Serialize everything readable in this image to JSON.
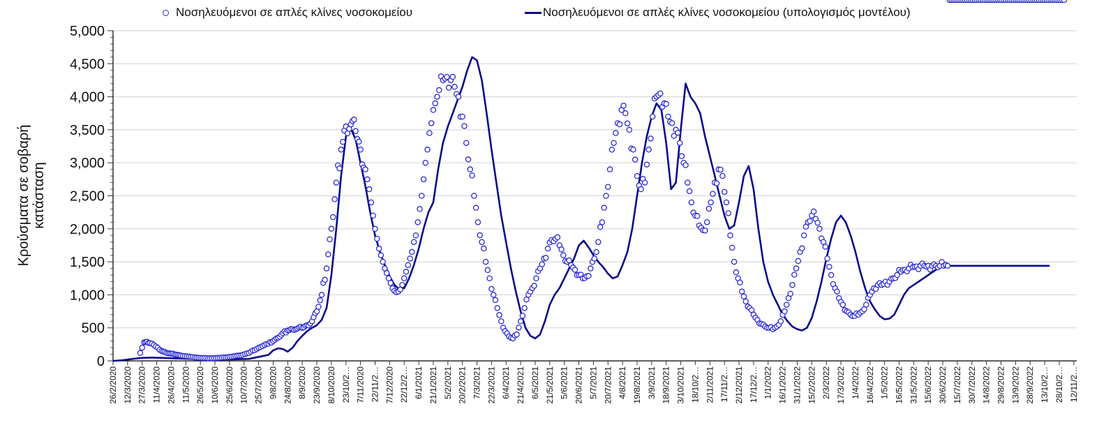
{
  "chart_data": {
    "type": "line",
    "title": "",
    "xlabel": "",
    "ylabel": "Κρούσματα σε σοβαρή κατάσταση",
    "ylabel_lines": [
      "Κρούσματα σε σοβαρή",
      "κατάσταση"
    ],
    "ylim": [
      0,
      5000
    ],
    "yticks": [
      0,
      500,
      1000,
      1500,
      2000,
      2500,
      3000,
      3500,
      4000,
      4500,
      5000
    ],
    "ytick_labels": [
      "0",
      "500",
      "1,000",
      "1,500",
      "2,000",
      "2,500",
      "3,000",
      "3,500",
      "4,000",
      "4,500",
      "5,000"
    ],
    "grid": true,
    "legend_position": "top",
    "x_start": "26/2/2020",
    "x_end": "15/11/2022",
    "x_range_days": [
      0,
      993
    ],
    "xtick_labels": [
      "26/2/2020",
      "12/3/2020",
      "27/3/2020",
      "11/4/2020",
      "26/4/2020",
      "11/5/2020",
      "26/5/2020",
      "10/6/2020",
      "25/6/2020",
      "10/7/2020",
      "25/7/2020",
      "9/8/2020",
      "24/8/2020",
      "8/9/2020",
      "23/9/2020",
      "8/10/2020",
      "23/10/2…",
      "7/11/2020",
      "22/11/2…",
      "7/12/2020",
      "22/12/2…",
      "6/1/2021",
      "21/1/2021",
      "5/2/2021",
      "20/2/2021",
      "7/3/2021",
      "22/3/2021",
      "6/4/2021",
      "21/4/2021",
      "6/5/2021",
      "21/5/2021",
      "5/6/2021",
      "20/6/2021",
      "5/7/2021",
      "20/7/2021",
      "4/8/2021",
      "19/8/2021",
      "3/9/2021",
      "18/9/2021",
      "3/10/2021",
      "18/10/2…",
      "2/11/2021",
      "17/11/2…",
      "2/12/2021",
      "17/12/2…",
      "1/1/2022",
      "16/1/2022",
      "31/1/2022",
      "15/2/2022",
      "2/3/2022",
      "17/3/2022",
      "1/4/2022",
      "16/4/2022",
      "1/5/2022",
      "16/5/2022",
      "31/5/2022",
      "15/6/2022",
      "30/6/2022",
      "15/7/2022",
      "30/7/2022",
      "14/8/2022",
      "29/8/2022",
      "13/9/2022",
      "28/9/2022",
      "13/10/2…",
      "28/10/2…",
      "12/11/2…"
    ],
    "xtick_step_days": 15,
    "series": [
      {
        "name": "Νοσηλευόμενοι σε απλές κλίνες νοσοκομείου",
        "style": "markers",
        "marker": "open-circle",
        "color": "#2b2bd6",
        "x_days": [
          28,
          30,
          32,
          35,
          38,
          42,
          46,
          50,
          55,
          60,
          65,
          70,
          80,
          90,
          100,
          110,
          120,
          130,
          140,
          150,
          160,
          165,
          170,
          175,
          180,
          185,
          190,
          195,
          200,
          205,
          210,
          215,
          220,
          225,
          230,
          235,
          240,
          245,
          250,
          255,
          260,
          262,
          264,
          266,
          268,
          270,
          272,
          274,
          276,
          278,
          280,
          282,
          284,
          286,
          288,
          290,
          292,
          294,
          296,
          298,
          300,
          302,
          304,
          306,
          308,
          310,
          312,
          314,
          316,
          318,
          320,
          322,
          324,
          326,
          328,
          330,
          332,
          334,
          336,
          340,
          344,
          348,
          352,
          356,
          360,
          364,
          368,
          372,
          376,
          380,
          384,
          388,
          392,
          396,
          400,
          404,
          408,
          412,
          416,
          420,
          424,
          428,
          432,
          436,
          440,
          444,
          448,
          452,
          456,
          460,
          464,
          468,
          472,
          476,
          480,
          484,
          488,
          492,
          496,
          500,
          504,
          508,
          512,
          516,
          520,
          524,
          528,
          532,
          536,
          540,
          544,
          548,
          552,
          556,
          560,
          564,
          568,
          572,
          576,
          580,
          584,
          588,
          592,
          596,
          600,
          604,
          608,
          612,
          616,
          620,
          624,
          628,
          632,
          636,
          640,
          644,
          648,
          652,
          656,
          660,
          664,
          668,
          672,
          676,
          680,
          684,
          688,
          692,
          696,
          700,
          704,
          708,
          712,
          716,
          720,
          724,
          728,
          732,
          736,
          740,
          744,
          748,
          752,
          756,
          760,
          764,
          768,
          772,
          776,
          780,
          784,
          788,
          792,
          796,
          800,
          804,
          808,
          812,
          816,
          820,
          824,
          828,
          832,
          836,
          840,
          844,
          848,
          852,
          856,
          860,
          864,
          868,
          872,
          876,
          880,
          884,
          888,
          892,
          896,
          900,
          904,
          908,
          912,
          916,
          920,
          924,
          928,
          932,
          936,
          940,
          944,
          948,
          952,
          956,
          960,
          964,
          968,
          972,
          976,
          980
        ],
        "values": [
          120,
          200,
          280,
          290,
          270,
          240,
          200,
          150,
          120,
          110,
          95,
          80,
          60,
          45,
          40,
          45,
          60,
          80,
          120,
          200,
          260,
          300,
          350,
          420,
          460,
          480,
          490,
          500,
          540,
          600,
          750,
          1000,
          1400,
          2000,
          2700,
          3200,
          3550,
          3580,
          3480,
          3200,
          2900,
          2750,
          2600,
          2400,
          2200,
          2000,
          1850,
          1700,
          1600,
          1500,
          1400,
          1330,
          1250,
          1180,
          1100,
          1060,
          1040,
          1050,
          1080,
          1150,
          1250,
          1350,
          1450,
          1550,
          1650,
          1800,
          1900,
          2100,
          2300,
          2500,
          2750,
          3000,
          3200,
          3450,
          3600,
          3800,
          3900,
          4000,
          4100,
          4250,
          4300,
          4250,
          4150,
          4000,
          3700,
          3300,
          2900,
          2500,
          2100,
          1800,
          1500,
          1250,
          1000,
          800,
          600,
          450,
          370,
          340,
          400,
          600,
          800,
          1000,
          1100,
          1250,
          1400,
          1550,
          1700,
          1830,
          1850,
          1750,
          1600,
          1500,
          1450,
          1380,
          1300,
          1250,
          1280,
          1400,
          1550,
          1800,
          2100,
          2500,
          2900,
          3300,
          3600,
          3800,
          3750,
          3500,
          3200,
          2800,
          2600,
          2700,
          3200,
          3700,
          4000,
          4050,
          3900,
          3700,
          3600,
          3500,
          3300,
          3000,
          2700,
          2400,
          2200,
          2050,
          1980,
          2100,
          2400,
          2700,
          2900,
          2800,
          2400,
          1900,
          1500,
          1250,
          1050,
          900,
          800,
          700,
          620,
          560,
          520,
          500,
          480,
          520,
          600,
          750,
          950,
          1150,
          1400,
          1650,
          1900,
          2100,
          2200,
          2150,
          2000,
          1800,
          1550,
          1300,
          1100,
          950,
          850,
          750,
          700,
          680,
          700,
          750,
          850,
          1000,
          1100,
          1150,
          1150,
          1200,
          1200,
          1250,
          1300,
          1350,
          1380,
          1400,
          1420,
          1430,
          1440,
          1440,
          1440,
          1440,
          1440,
          1440,
          1440,
          1440
        ]
      },
      {
        "name": "Νοσηλευόμενοι σε απλές κλίνες νοσοκομείου (υπολογισμός μοντέλου)",
        "style": "line",
        "color": "#0a0a8c",
        "x_days": [
          0,
          10,
          20,
          30,
          40,
          50,
          60,
          70,
          80,
          90,
          100,
          110,
          120,
          130,
          140,
          150,
          160,
          165,
          170,
          175,
          180,
          185,
          190,
          195,
          200,
          205,
          210,
          215,
          220,
          225,
          230,
          235,
          240,
          245,
          250,
          255,
          260,
          265,
          270,
          275,
          280,
          285,
          290,
          295,
          300,
          305,
          310,
          315,
          320,
          325,
          330,
          335,
          340,
          345,
          350,
          355,
          360,
          365,
          370,
          375,
          380,
          385,
          390,
          395,
          400,
          405,
          410,
          415,
          420,
          425,
          430,
          435,
          440,
          445,
          450,
          455,
          460,
          465,
          470,
          475,
          480,
          485,
          490,
          495,
          500,
          505,
          510,
          515,
          520,
          525,
          530,
          535,
          540,
          545,
          550,
          555,
          560,
          565,
          570,
          575,
          580,
          585,
          590,
          595,
          600,
          605,
          610,
          615,
          620,
          625,
          630,
          635,
          640,
          645,
          650,
          655,
          660,
          665,
          670,
          675,
          680,
          685,
          690,
          695,
          700,
          705,
          710,
          715,
          720,
          725,
          730,
          735,
          740,
          745,
          750,
          755,
          760,
          765,
          770,
          775,
          780,
          785,
          790,
          795,
          800,
          805,
          810,
          815,
          820,
          825,
          830,
          835,
          840,
          845,
          850,
          855,
          860,
          865,
          870,
          875,
          880,
          885,
          890,
          895,
          900,
          905,
          910,
          915,
          920,
          925,
          930,
          935,
          940,
          945,
          950,
          955,
          960,
          965,
          970,
          975,
          980,
          985,
          990,
          993
        ],
        "values": [
          0,
          10,
          30,
          45,
          50,
          45,
          40,
          35,
          30,
          28,
          25,
          22,
          22,
          25,
          30,
          60,
          90,
          160,
          190,
          180,
          140,
          200,
          300,
          380,
          450,
          500,
          540,
          620,
          800,
          1300,
          2000,
          2800,
          3400,
          3520,
          3350,
          3000,
          2650,
          2250,
          1900,
          1650,
          1450,
          1280,
          1150,
          1080,
          1100,
          1250,
          1450,
          1700,
          2000,
          2250,
          2400,
          2900,
          3300,
          3550,
          3750,
          3950,
          4150,
          4400,
          4600,
          4550,
          4250,
          3750,
          3200,
          2700,
          2200,
          1800,
          1400,
          1050,
          750,
          500,
          380,
          340,
          400,
          600,
          850,
          1000,
          1100,
          1250,
          1400,
          1550,
          1750,
          1820,
          1720,
          1600,
          1500,
          1420,
          1320,
          1250,
          1280,
          1450,
          1650,
          2000,
          2500,
          3000,
          3400,
          3700,
          3900,
          3800,
          3300,
          2600,
          2700,
          3500,
          4200,
          4000,
          3900,
          3750,
          3400,
          3100,
          2800,
          2500,
          2200,
          2000,
          2050,
          2400,
          2800,
          2950,
          2600,
          2000,
          1500,
          1200,
          1000,
          850,
          700,
          600,
          520,
          480,
          460,
          500,
          650,
          900,
          1200,
          1550,
          1850,
          2100,
          2200,
          2100,
          1900,
          1650,
          1350,
          1100,
          900,
          780,
          680,
          630,
          640,
          700,
          850,
          1000,
          1100,
          1150,
          1200,
          1250,
          1300,
          1350,
          1400,
          1430,
          1440,
          1440,
          1440,
          1440,
          1440,
          1440,
          1440,
          1440,
          1440,
          1440,
          1440,
          1440,
          1440,
          1440,
          1440,
          1440,
          1440,
          1440,
          1440,
          1440,
          1440,
          1440
        ]
      }
    ]
  },
  "legend": {
    "items": [
      {
        "label": "Νοσηλευόμενοι σε απλές κλίνες νοσοκομείου",
        "marker": "open-circle"
      },
      {
        "label": "Νοσηλευόμενοι σε απλές κλίνες νοσοκομείου (υπολογισμός μοντέλου)",
        "marker": "line"
      }
    ]
  },
  "colors": {
    "markers": "#2b2bd6",
    "line": "#0a0a8c",
    "grid": "#d9d9d9",
    "axis": "#000000"
  }
}
